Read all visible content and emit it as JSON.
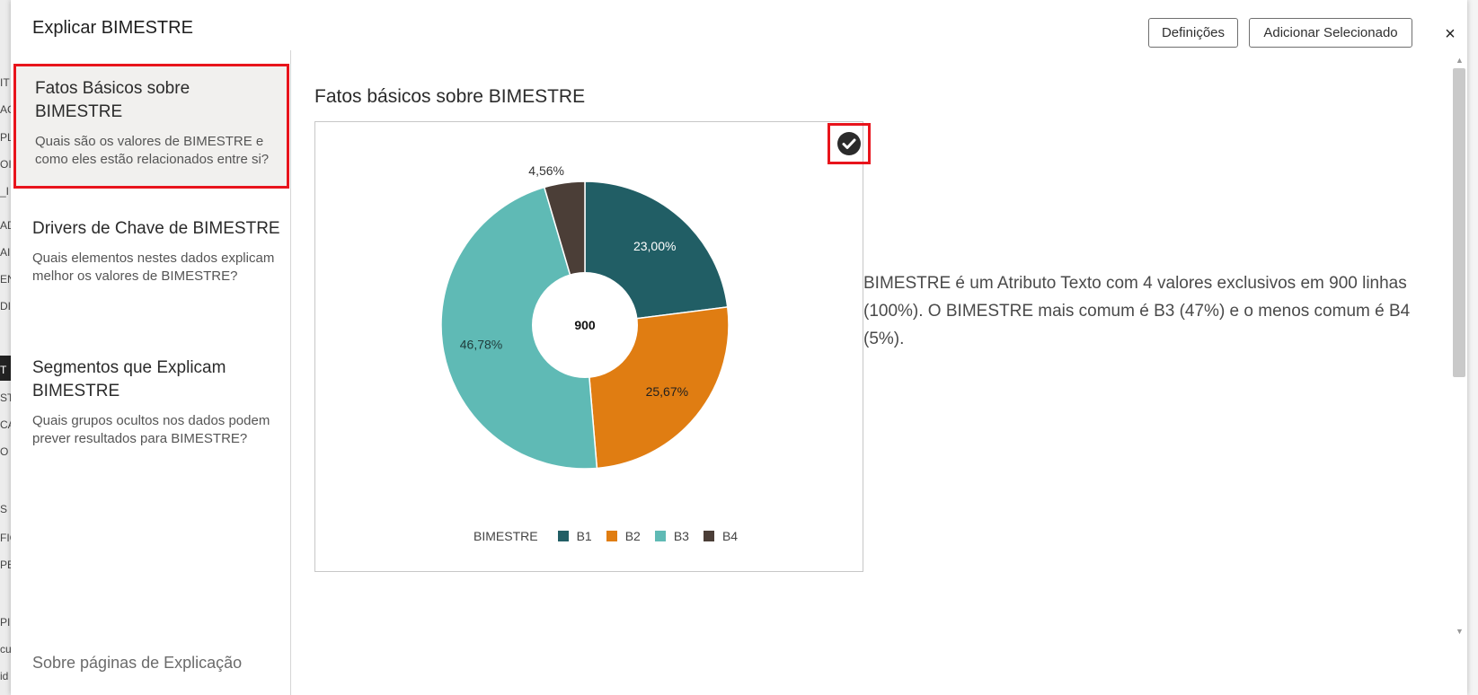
{
  "dialog": {
    "title": "Explicar BIMESTRE",
    "settings_label": "Definições",
    "add_selected_label": "Adicionar Selecionado",
    "close_label": "×"
  },
  "background": {
    "fragments": [
      "IT",
      "AC",
      "PL",
      "OI",
      "_I",
      "AD",
      "AI",
      "EN",
      "DI",
      "T",
      "ST",
      "CA",
      "O",
      "S",
      "FIC",
      "PE",
      "PI",
      "cu",
      "id"
    ]
  },
  "sidebar": {
    "items": [
      {
        "title": "Fatos Básicos sobre BIMESTRE",
        "desc": "Quais são os valores de BIMESTRE e como eles estão relacionados entre si?",
        "active": true
      },
      {
        "title": "Drivers de Chave de BIMESTRE",
        "desc": "Quais elementos nestes dados explicam melhor os valores de BIMESTRE?",
        "active": false
      },
      {
        "title": "Segmentos que Explicam BIMESTRE",
        "desc": "Quais grupos ocultos nos dados podem prever resultados para BIMESTRE?",
        "active": false
      }
    ],
    "about_link": "Sobre páginas de Explicação"
  },
  "content": {
    "title": "Fatos básicos sobre BIMESTRE",
    "summary": "BIMESTRE é um Atributo Texto com 4 valores exclusivos em 900 linhas (100%). O BIMESTRE mais comum é B3 (47%) e o menos comum é B4 (5%)."
  },
  "chart_data": {
    "type": "pie",
    "variant": "donut",
    "center_label": "900",
    "legend_title": "BIMESTRE",
    "legend_position": "bottom",
    "categories": [
      "B1",
      "B2",
      "B3",
      "B4"
    ],
    "values": [
      23.0,
      25.67,
      46.78,
      4.56
    ],
    "labels": [
      "23,00%",
      "25,67%",
      "46,78%",
      "4,56%"
    ],
    "colors": [
      "#215e65",
      "#e07d12",
      "#5fbab5",
      "#4b3e37"
    ]
  }
}
